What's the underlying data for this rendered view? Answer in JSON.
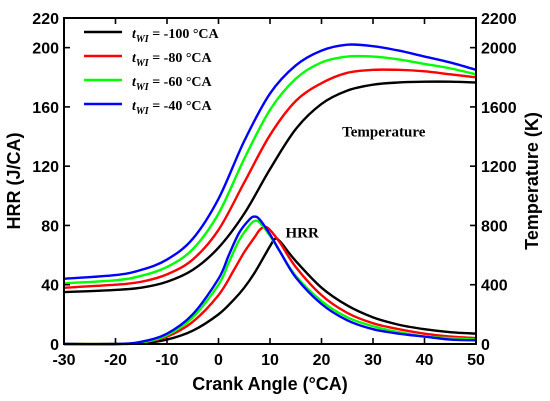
{
  "chart_data": {
    "type": "line",
    "xlabel": "Crank Angle (°CA)",
    "ylabel_left": "HRR (J/CA)",
    "ylabel_right": "Temperature (K)",
    "xlim": [
      -30,
      50
    ],
    "ylim_left": [
      0,
      220
    ],
    "ylim_right": [
      0,
      2200
    ],
    "xticks": [
      -30,
      -20,
      -10,
      0,
      10,
      20,
      30,
      40,
      50
    ],
    "yticks_left": [
      0,
      40,
      80,
      120,
      160,
      200,
      220
    ],
    "yticks_right": [
      0,
      400,
      800,
      1200,
      1600,
      2000,
      2200
    ],
    "grid": false,
    "legend_position": "top-left",
    "legend_symbol": "t",
    "legend_subscript": "WI",
    "annotations": {
      "temperature": "Temperature",
      "hrr": "HRR"
    },
    "series": [
      {
        "name": "= -100 °CA",
        "color": "#000000",
        "hrr": {
          "x": [
            -30,
            -20,
            -15,
            -10,
            -5,
            0,
            3,
            5,
            7,
            9,
            10,
            11,
            12,
            15,
            20,
            25,
            30,
            35,
            40,
            45,
            50
          ],
          "y": [
            0,
            0,
            0.5,
            3,
            9,
            20,
            30,
            38,
            48,
            60,
            66,
            71,
            69,
            56,
            38,
            26,
            18,
            13,
            10,
            8,
            7
          ]
        },
        "temperature": {
          "x": [
            -30,
            -20,
            -15,
            -10,
            -5,
            0,
            5,
            10,
            15,
            20,
            25,
            30,
            35,
            40,
            45,
            50
          ],
          "y": [
            350,
            365,
            380,
            420,
            500,
            650,
            880,
            1180,
            1450,
            1620,
            1710,
            1750,
            1765,
            1770,
            1770,
            1765
          ]
        }
      },
      {
        "name": "= -80 °CA",
        "color": "#ff0000",
        "hrr": {
          "x": [
            -30,
            -20,
            -15,
            -10,
            -5,
            0,
            3,
            5,
            7,
            8,
            9,
            10,
            12,
            15,
            20,
            25,
            30,
            35,
            40,
            45,
            50
          ],
          "y": [
            0,
            0,
            1,
            5,
            15,
            33,
            50,
            62,
            72,
            77,
            79,
            77,
            68,
            52,
            33,
            21,
            14,
            10,
            7,
            5,
            4
          ]
        },
        "temperature": {
          "x": [
            -30,
            -20,
            -15,
            -10,
            -5,
            0,
            5,
            10,
            15,
            20,
            25,
            30,
            35,
            40,
            45,
            50
          ],
          "y": [
            380,
            400,
            420,
            470,
            570,
            770,
            1090,
            1410,
            1640,
            1760,
            1830,
            1850,
            1850,
            1840,
            1820,
            1800
          ]
        }
      },
      {
        "name": "= -60 °CA",
        "color": "#00ff00",
        "hrr": {
          "x": [
            -30,
            -20,
            -15,
            -10,
            -5,
            0,
            2,
            4,
            6,
            7,
            8,
            10,
            12,
            15,
            20,
            25,
            30,
            35,
            40,
            45,
            50
          ],
          "y": [
            0,
            0,
            1,
            6,
            18,
            40,
            55,
            70,
            80,
            83,
            82,
            73,
            62,
            46,
            29,
            18,
            12,
            8,
            5,
            4,
            3
          ]
        },
        "temperature": {
          "x": [
            -30,
            -20,
            -15,
            -10,
            -5,
            0,
            5,
            10,
            15,
            20,
            25,
            30,
            35,
            40,
            45,
            50
          ],
          "y": [
            410,
            430,
            460,
            520,
            640,
            880,
            1250,
            1580,
            1790,
            1900,
            1940,
            1940,
            1920,
            1890,
            1860,
            1820
          ]
        }
      },
      {
        "name": "= -40 °CA",
        "color": "#0000ff",
        "hrr": {
          "x": [
            -30,
            -20,
            -15,
            -10,
            -5,
            0,
            2,
            4,
            6,
            7,
            8,
            10,
            12,
            15,
            20,
            25,
            30,
            35,
            40,
            45,
            50
          ],
          "y": [
            0,
            0,
            1.5,
            7,
            20,
            44,
            60,
            75,
            84,
            86,
            84,
            74,
            62,
            45,
            27,
            16,
            10,
            7,
            5,
            3,
            2.5
          ]
        },
        "temperature": {
          "x": [
            -30,
            -20,
            -15,
            -10,
            -5,
            0,
            5,
            10,
            15,
            20,
            25,
            30,
            35,
            40,
            45,
            50
          ],
          "y": [
            440,
            465,
            500,
            570,
            710,
            980,
            1370,
            1690,
            1880,
            1980,
            2020,
            2010,
            1980,
            1940,
            1900,
            1850
          ]
        }
      }
    ]
  }
}
